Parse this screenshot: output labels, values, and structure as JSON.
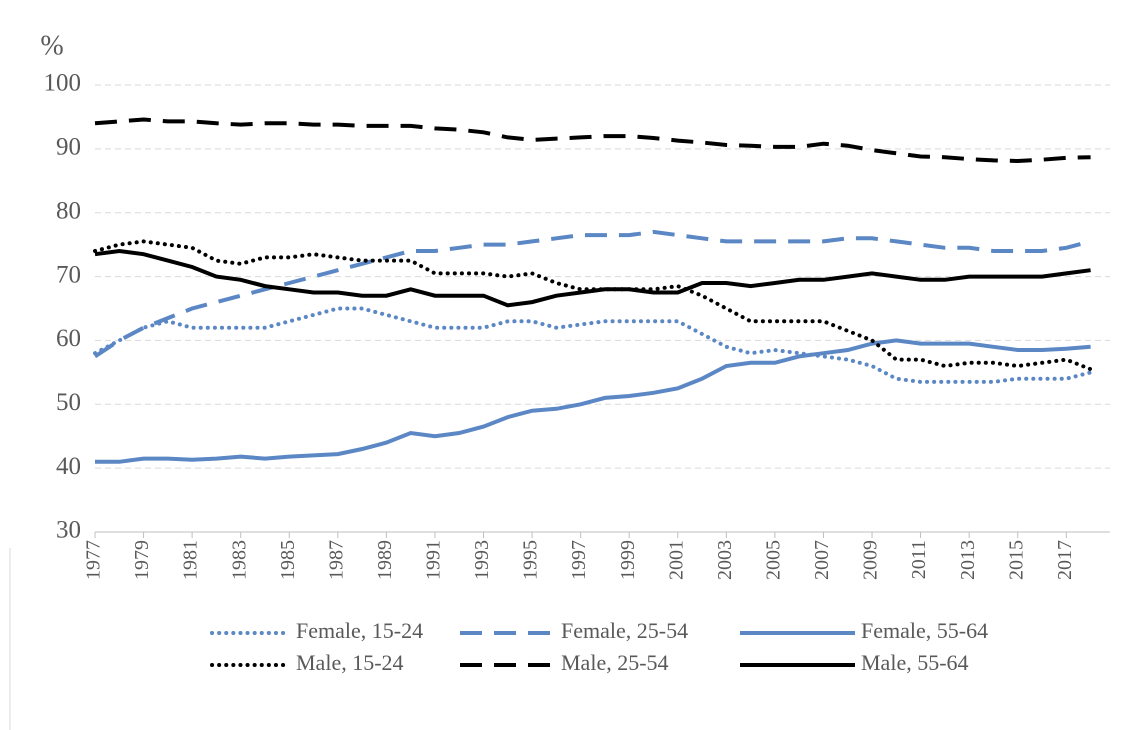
{
  "chart_data": {
    "type": "line",
    "y_label": "%",
    "x": [
      1977,
      1978,
      1979,
      1980,
      1981,
      1982,
      1983,
      1984,
      1985,
      1986,
      1987,
      1988,
      1989,
      1990,
      1991,
      1992,
      1993,
      1994,
      1995,
      1996,
      1997,
      1998,
      1999,
      2000,
      2001,
      2002,
      2003,
      2004,
      2005,
      2006,
      2007,
      2008,
      2009,
      2010,
      2011,
      2012,
      2013,
      2014,
      2015,
      2016,
      2017,
      2018
    ],
    "xlim": [
      1977,
      2018.8
    ],
    "xticks": [
      1977,
      1979,
      1981,
      1983,
      1985,
      1987,
      1989,
      1991,
      1993,
      1995,
      1997,
      1999,
      2001,
      2003,
      2005,
      2007,
      2009,
      2011,
      2013,
      2015,
      2017
    ],
    "ylim": [
      30,
      100
    ],
    "yticks": [
      30,
      40,
      50,
      60,
      70,
      80,
      90,
      100
    ],
    "grid": true,
    "legend": "bottom",
    "series": [
      {
        "name": "Female, 15-24",
        "color": "#5b87c5",
        "style": "dotted",
        "values": [
          58,
          60,
          62,
          63,
          62,
          62,
          62,
          62,
          63,
          64,
          65,
          65,
          64,
          63,
          62,
          62,
          62,
          63,
          63,
          62,
          62.5,
          63,
          63,
          63,
          63,
          61,
          59,
          58,
          58.5,
          58,
          57.5,
          57,
          56,
          54,
          53.5,
          53.5,
          53.5,
          53.5,
          54,
          54,
          54,
          55
        ]
      },
      {
        "name": "Female, 25-54",
        "color": "#5b87c5",
        "style": "dashed",
        "values": [
          57.5,
          60,
          62,
          63.5,
          65,
          66,
          67,
          68,
          69,
          70,
          71,
          72,
          73,
          74,
          74,
          74.5,
          75,
          75,
          75.5,
          76,
          76.5,
          76.5,
          76.5,
          77,
          76.5,
          76,
          75.5,
          75.5,
          75.5,
          75.5,
          75.5,
          76,
          76,
          75.5,
          75,
          74.5,
          74.5,
          74,
          74,
          74,
          74.5,
          75.5
        ]
      },
      {
        "name": "Female, 55-64",
        "color": "#5b87c5",
        "style": "solid",
        "values": [
          41,
          41,
          41.5,
          41.5,
          41.3,
          41.5,
          41.8,
          41.5,
          41.8,
          42,
          42.2,
          43,
          44,
          45.5,
          45,
          45.5,
          46.5,
          48,
          49,
          49.3,
          50,
          51,
          51.3,
          51.8,
          52.5,
          54,
          56,
          56.5,
          56.5,
          57.5,
          58,
          58.5,
          59.5,
          60,
          59.5,
          59.5,
          59.5,
          59,
          58.5,
          58.5,
          58.7,
          59
        ]
      },
      {
        "name": "Male, 15-24",
        "color": "#000000",
        "style": "dotted",
        "values": [
          74,
          75,
          75.5,
          75,
          74.5,
          72.5,
          72,
          73,
          73,
          73.5,
          73,
          72.5,
          72.5,
          72.5,
          70.5,
          70.5,
          70.5,
          70,
          70.5,
          69,
          68,
          68,
          68,
          68,
          68.5,
          67,
          65,
          63,
          63,
          63,
          63,
          61.5,
          60,
          57,
          57,
          56,
          56.5,
          56.5,
          56,
          56.5,
          57,
          55.5
        ]
      },
      {
        "name": "Male, 25-54",
        "color": "#000000",
        "style": "dashed",
        "values": [
          94,
          94.3,
          94.6,
          94.3,
          94.3,
          94,
          93.8,
          94,
          94,
          93.8,
          93.8,
          93.6,
          93.6,
          93.6,
          93.2,
          93,
          92.6,
          91.8,
          91.4,
          91.6,
          91.8,
          92,
          92,
          91.7,
          91.3,
          91,
          90.6,
          90.5,
          90.3,
          90.3,
          90.8,
          90.5,
          89.8,
          89.3,
          88.8,
          88.7,
          88.4,
          88.2,
          88.1,
          88.3,
          88.6,
          88.7
        ]
      },
      {
        "name": "Male, 55-64",
        "color": "#000000",
        "style": "solid",
        "values": [
          73.5,
          74,
          73.5,
          72.5,
          71.5,
          70,
          69.5,
          68.5,
          68,
          67.5,
          67.5,
          67,
          67,
          68,
          67,
          67,
          67,
          65.5,
          66,
          67,
          67.5,
          68,
          68,
          67.5,
          67.5,
          69,
          69,
          68.5,
          69,
          69.5,
          69.5,
          70,
          70.5,
          70,
          69.5,
          69.5,
          70,
          70,
          70,
          70,
          70.5,
          71
        ]
      }
    ]
  }
}
